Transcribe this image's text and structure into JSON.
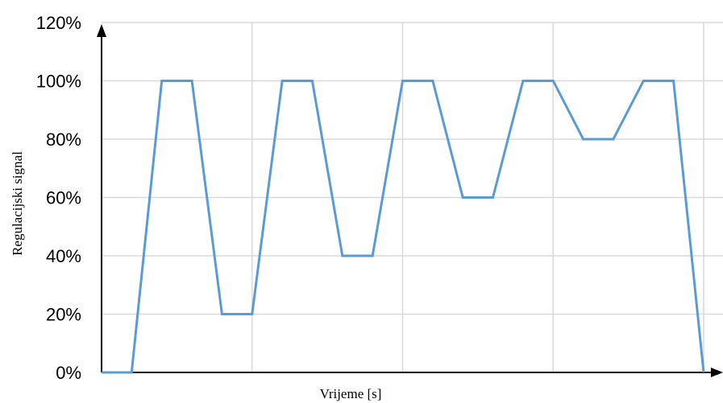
{
  "chart_data": {
    "type": "line",
    "xlabel": "Vrijeme [s]",
    "ylabel": "Regulacijski signal",
    "ylim": [
      0,
      120
    ],
    "y_ticks": [
      "0%",
      "20%",
      "40%",
      "60%",
      "80%",
      "100%",
      "120%"
    ],
    "y_tick_values": [
      0,
      20,
      40,
      60,
      80,
      100,
      120
    ],
    "x_ticks_labeled": false,
    "xlim": [
      0,
      20
    ],
    "x_gridlines": [
      5,
      10,
      15,
      20
    ],
    "grid": true,
    "legend": "none",
    "series": [
      {
        "color": "#5b9bd5",
        "points": [
          [
            0,
            0
          ],
          [
            1,
            0
          ],
          [
            2,
            100
          ],
          [
            3,
            100
          ],
          [
            4,
            20
          ],
          [
            5,
            20
          ],
          [
            6,
            100
          ],
          [
            7,
            100
          ],
          [
            8,
            40
          ],
          [
            9,
            40
          ],
          [
            10,
            100
          ],
          [
            11,
            100
          ],
          [
            12,
            60
          ],
          [
            13,
            60
          ],
          [
            14,
            100
          ],
          [
            15,
            100
          ],
          [
            16,
            80
          ],
          [
            17,
            80
          ],
          [
            18,
            100
          ],
          [
            19,
            100
          ],
          [
            20,
            0
          ]
        ]
      }
    ]
  }
}
